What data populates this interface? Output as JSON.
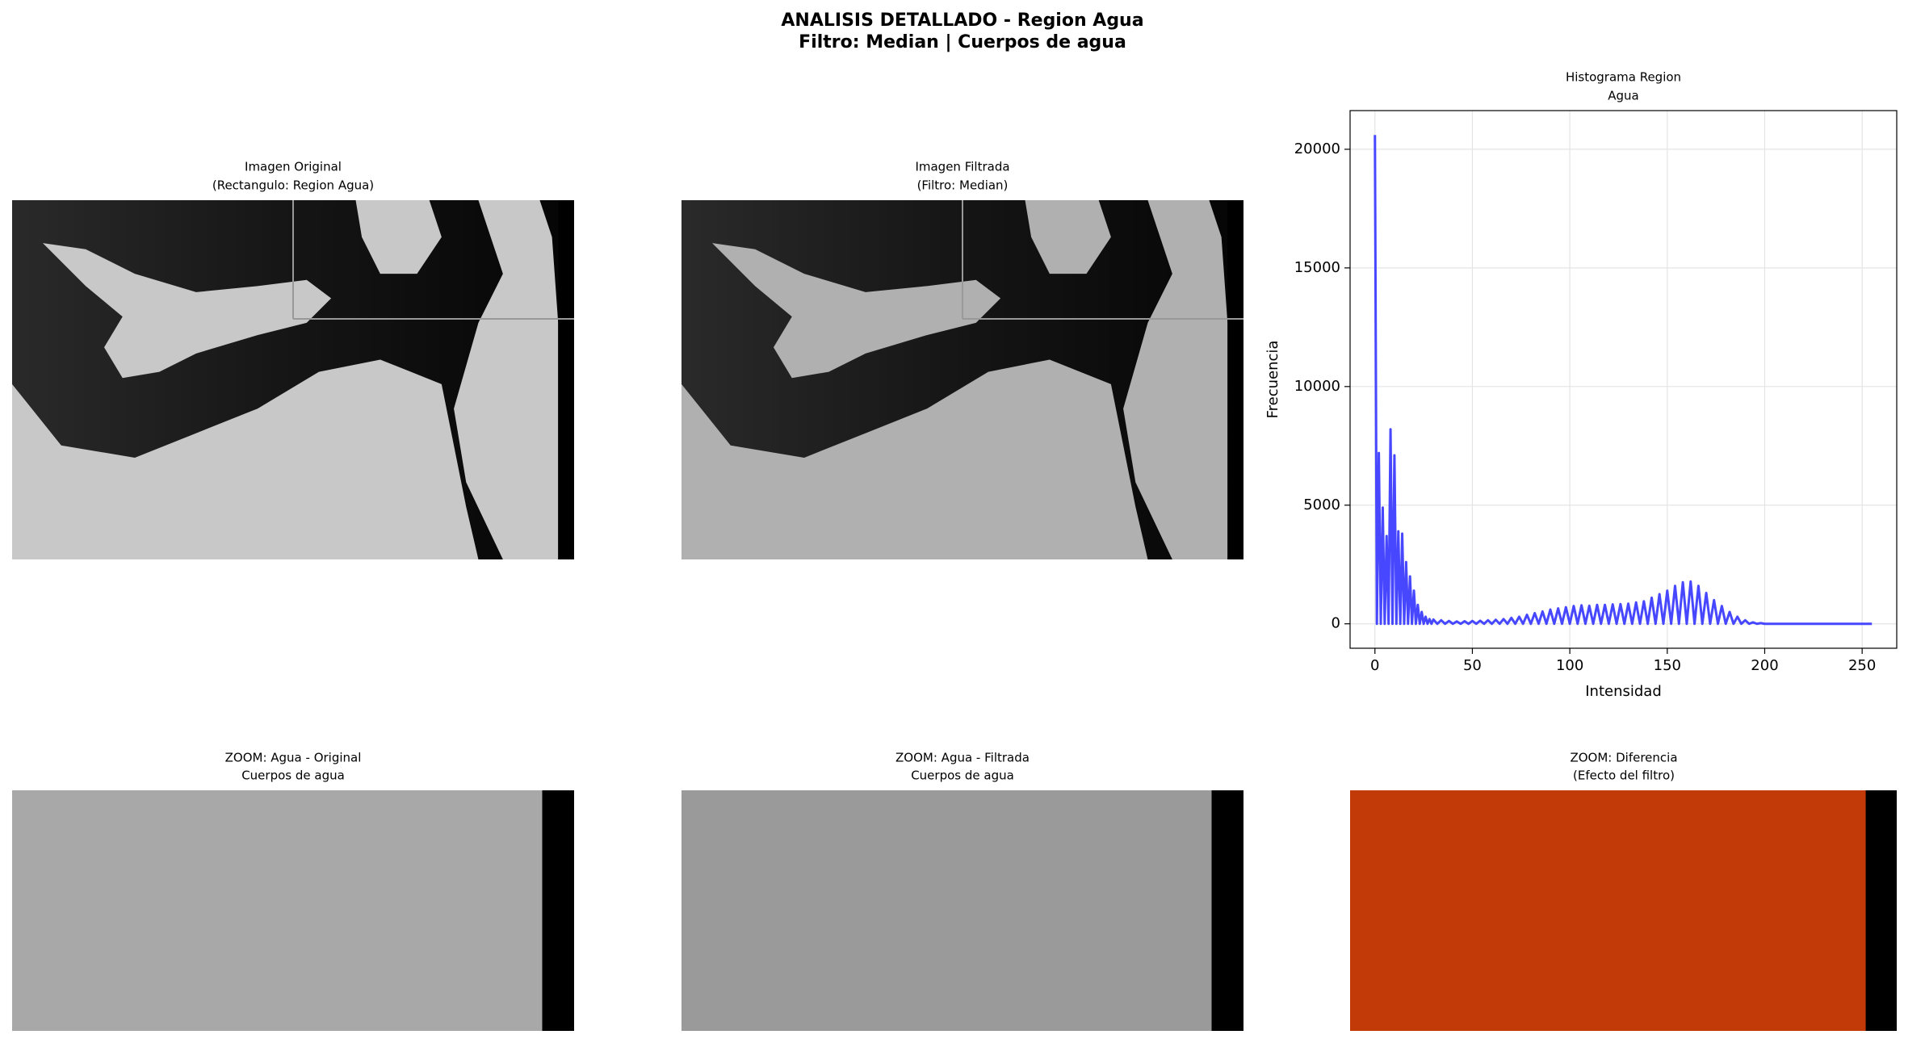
{
  "title": [
    "ANALISIS DETALLADO - Region Agua",
    "Filtro: Median | Cuerpos de agua"
  ],
  "panels": [
    {
      "title": [
        "Imagen Original",
        "(Rectangulo: Region Agua)"
      ]
    },
    {
      "title": [
        "Imagen Filtrada",
        "(Filtro: Median)"
      ]
    },
    {
      "title": [
        "ZOOM: Agua - Original",
        "Cuerpos de agua"
      ]
    },
    {
      "title": [
        "ZOOM: Agua - Filtrada",
        "Cuerpos de agua"
      ]
    },
    {
      "title": [
        "ZOOM: Diferencia",
        "(Efecto del filtro)"
      ]
    }
  ],
  "chart_data": {
    "type": "line",
    "title": [
      "Histograma Region",
      "Agua"
    ],
    "xlabel": "Intensidad",
    "ylabel": "Frecuencia",
    "x": [
      0,
      1,
      2,
      3,
      4,
      5,
      6,
      7,
      8,
      9,
      10,
      11,
      12,
      13,
      14,
      15,
      16,
      17,
      18,
      19,
      20,
      21,
      22,
      23,
      24,
      25,
      26,
      27,
      28,
      29,
      30,
      32,
      34,
      36,
      38,
      40,
      42,
      44,
      46,
      48,
      50,
      52,
      54,
      56,
      58,
      60,
      62,
      64,
      66,
      68,
      70,
      72,
      74,
      76,
      78,
      80,
      82,
      84,
      86,
      88,
      90,
      92,
      94,
      96,
      98,
      100,
      102,
      104,
      106,
      108,
      110,
      112,
      114,
      116,
      118,
      120,
      122,
      124,
      126,
      128,
      130,
      132,
      134,
      136,
      138,
      140,
      142,
      144,
      146,
      148,
      150,
      152,
      154,
      156,
      158,
      160,
      162,
      164,
      166,
      168,
      170,
      172,
      174,
      176,
      178,
      180,
      182,
      184,
      186,
      188,
      190,
      192,
      194,
      196,
      198,
      200,
      255
    ],
    "values": [
      20600,
      0,
      7200,
      0,
      4900,
      0,
      3700,
      0,
      8200,
      0,
      7100,
      0,
      3900,
      0,
      3800,
      0,
      2600,
      0,
      2000,
      0,
      1400,
      0,
      800,
      0,
      500,
      0,
      300,
      0,
      200,
      0,
      180,
      0,
      150,
      0,
      120,
      0,
      100,
      0,
      110,
      0,
      120,
      0,
      130,
      0,
      150,
      0,
      170,
      0,
      200,
      0,
      250,
      0,
      300,
      0,
      380,
      0,
      450,
      0,
      520,
      0,
      600,
      0,
      650,
      0,
      700,
      0,
      750,
      0,
      780,
      0,
      760,
      0,
      800,
      0,
      800,
      0,
      820,
      0,
      830,
      0,
      850,
      0,
      900,
      0,
      950,
      0,
      1100,
      0,
      1250,
      0,
      1400,
      0,
      1600,
      0,
      1750,
      0,
      1780,
      0,
      1600,
      0,
      1300,
      0,
      1000,
      0,
      750,
      0,
      500,
      0,
      300,
      0,
      150,
      0,
      60,
      0,
      30,
      0,
      0
    ],
    "color": "#4747ff",
    "xlim": [
      -12.75,
      267.75
    ],
    "ylim": [
      -1030,
      21630
    ],
    "xticks": [
      0,
      50,
      100,
      150,
      200,
      250
    ],
    "yticks": [
      0,
      5000,
      10000,
      15000,
      20000
    ],
    "grid": true
  }
}
